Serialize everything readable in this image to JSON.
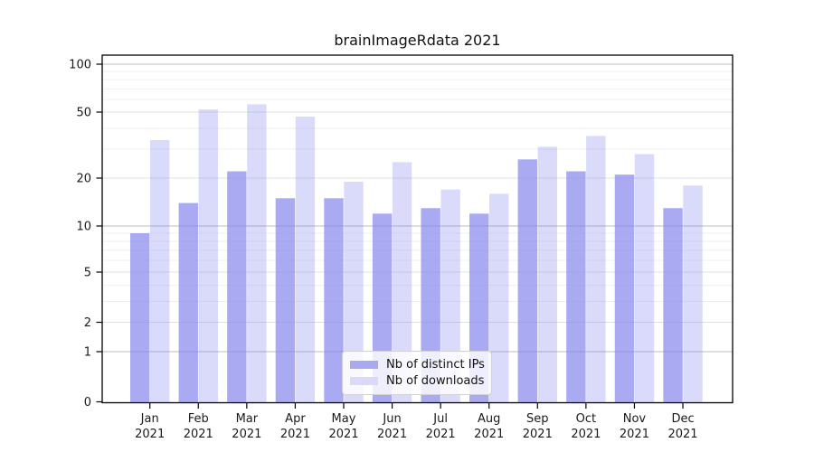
{
  "title": "brainImageRdata 2021",
  "chart_data": {
    "type": "bar",
    "title": "brainImageRdata 2021",
    "categories": [
      "Jan 2021",
      "Feb 2021",
      "Mar 2021",
      "Apr 2021",
      "May 2021",
      "Jun 2021",
      "Jul 2021",
      "Aug 2021",
      "Sep 2021",
      "Oct 2021",
      "Nov 2021",
      "Dec 2021"
    ],
    "x_tick_months": [
      "Jan",
      "Feb",
      "Mar",
      "Apr",
      "May",
      "Jun",
      "Jul",
      "Aug",
      "Sep",
      "Oct",
      "Nov",
      "Dec"
    ],
    "x_tick_year": "2021",
    "series": [
      {
        "name": "Nb of distinct IPs",
        "values": [
          9,
          14,
          22,
          15,
          15,
          12,
          13,
          12,
          26,
          22,
          21,
          13
        ],
        "base_color": "#8989ee",
        "alpha": 0.72,
        "legend_color": "#a9a9f0"
      },
      {
        "name": "Nb of downloads",
        "values": [
          34,
          52,
          56,
          47,
          19,
          25,
          17,
          16,
          31,
          36,
          28,
          18
        ],
        "base_color": "#8989ee",
        "alpha": 0.31,
        "legend_color": "#dadaf8"
      }
    ],
    "yscale": "log1p",
    "ylim": [
      0,
      115
    ],
    "y_ticks": [
      0,
      1,
      2,
      5,
      10,
      20,
      50,
      100
    ],
    "y_minor_gridlines": [
      3,
      4,
      6,
      7,
      8,
      9,
      30,
      40,
      60,
      70,
      80,
      90
    ],
    "grid": true,
    "legend_position": "lower center",
    "grid_colors": {
      "decade": "#bcbcbc",
      "major": "#e0e0e0",
      "minor": "#efefef"
    },
    "decade_lines": [
      1,
      10,
      100
    ],
    "axis_color": "#000000",
    "text_color": "#1a1a1a",
    "background": "#ffffff"
  }
}
